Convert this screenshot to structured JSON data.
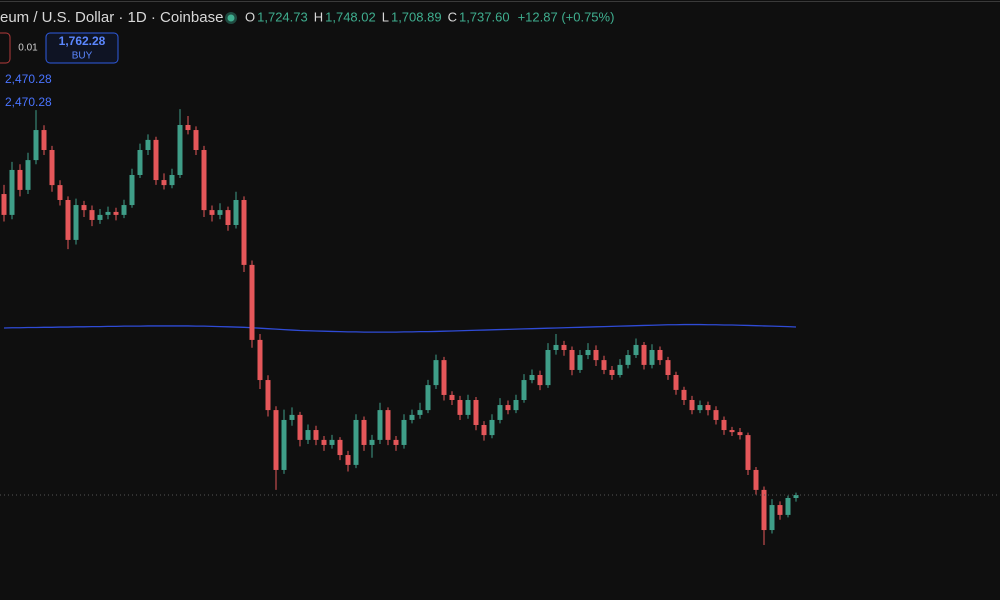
{
  "header": {
    "symbol": "eum / U.S. Dollar · 1D · Coinbase",
    "ohlc": [
      {
        "key": "O",
        "value": "1,724.73"
      },
      {
        "key": "H",
        "value": "1,748.02"
      },
      {
        "key": "L",
        "value": "1,708.89"
      },
      {
        "key": "C",
        "value": "1,737.60"
      }
    ],
    "change": "+12.87 (+0.75%)",
    "order": {
      "quantity": "0.01",
      "price": "1,762.28",
      "side": "BUY"
    },
    "indicator_labels": [
      "2,470.28",
      "2,470.28"
    ]
  },
  "chart_data": {
    "type": "candlestick",
    "up_color": "#3f9e88",
    "down_color": "#e5575a",
    "ylim": [
      1280,
      3896
    ],
    "candles": [
      [
        3050,
        3090,
        2930,
        2959
      ],
      [
        2959,
        3190,
        2940,
        3155
      ],
      [
        3155,
        3180,
        3040,
        3068
      ],
      [
        3068,
        3230,
        3050,
        3198
      ],
      [
        3198,
        3416,
        3180,
        3329
      ],
      [
        3329,
        3350,
        3220,
        3242
      ],
      [
        3242,
        3260,
        3060,
        3089
      ],
      [
        3089,
        3110,
        3000,
        3024
      ],
      [
        3024,
        3040,
        2810,
        2850
      ],
      [
        2850,
        3030,
        2830,
        3002
      ],
      [
        3002,
        3020,
        2950,
        2980
      ],
      [
        2980,
        3000,
        2910,
        2937
      ],
      [
        2937,
        2985,
        2920,
        2959
      ],
      [
        2959,
        2995,
        2940,
        2972
      ],
      [
        2972,
        2990,
        2935,
        2959
      ],
      [
        2959,
        3025,
        2945,
        3002
      ],
      [
        3002,
        3160,
        2990,
        3133
      ],
      [
        3133,
        3270,
        3120,
        3242
      ],
      [
        3242,
        3310,
        3220,
        3286
      ],
      [
        3286,
        3300,
        3090,
        3111
      ],
      [
        3111,
        3140,
        3070,
        3089
      ],
      [
        3089,
        3160,
        3075,
        3133
      ],
      [
        3133,
        3420,
        3120,
        3351
      ],
      [
        3351,
        3390,
        3310,
        3329
      ],
      [
        3329,
        3345,
        3220,
        3242
      ],
      [
        3242,
        3260,
        2950,
        2980
      ],
      [
        2980,
        3000,
        2930,
        2959
      ],
      [
        2959,
        3010,
        2940,
        2980
      ],
      [
        2980,
        2995,
        2890,
        2915
      ],
      [
        2915,
        3060,
        2900,
        3024
      ],
      [
        3024,
        3040,
        2710,
        2741
      ],
      [
        2741,
        2760,
        2380,
        2414
      ],
      [
        2414,
        2440,
        2200,
        2239
      ],
      [
        2239,
        2260,
        2080,
        2108
      ],
      [
        2108,
        2125,
        1760,
        1847
      ],
      [
        1847,
        2110,
        1830,
        2065
      ],
      [
        2065,
        2120,
        2040,
        2087
      ],
      [
        2087,
        2100,
        1950,
        1978
      ],
      [
        1978,
        2045,
        1960,
        2021
      ],
      [
        2021,
        2040,
        1955,
        1978
      ],
      [
        1978,
        1995,
        1930,
        1956
      ],
      [
        1956,
        2000,
        1940,
        1978
      ],
      [
        1978,
        1990,
        1890,
        1912
      ],
      [
        1912,
        1930,
        1840,
        1869
      ],
      [
        1869,
        2090,
        1855,
        2065
      ],
      [
        2065,
        2080,
        1930,
        1956
      ],
      [
        1956,
        2000,
        1900,
        1978
      ],
      [
        1978,
        2140,
        1960,
        2108
      ],
      [
        2108,
        2120,
        1955,
        1978
      ],
      [
        1978,
        1995,
        1930,
        1956
      ],
      [
        1956,
        2090,
        1940,
        2065
      ],
      [
        2065,
        2110,
        2050,
        2087
      ],
      [
        2087,
        2140,
        2070,
        2108
      ],
      [
        2108,
        2240,
        2095,
        2217
      ],
      [
        2217,
        2350,
        2200,
        2326
      ],
      [
        2326,
        2340,
        2150,
        2174
      ],
      [
        2174,
        2190,
        2130,
        2152
      ],
      [
        2152,
        2170,
        2065,
        2087
      ],
      [
        2087,
        2175,
        2070,
        2152
      ],
      [
        2152,
        2165,
        2020,
        2043
      ],
      [
        2043,
        2060,
        1975,
        1999
      ],
      [
        1999,
        2090,
        1985,
        2065
      ],
      [
        2065,
        2160,
        2050,
        2130
      ],
      [
        2130,
        2150,
        2090,
        2108
      ],
      [
        2108,
        2175,
        2095,
        2152
      ],
      [
        2152,
        2265,
        2140,
        2239
      ],
      [
        2239,
        2285,
        2225,
        2261
      ],
      [
        2261,
        2280,
        2195,
        2217
      ],
      [
        2217,
        2400,
        2205,
        2370
      ],
      [
        2370,
        2440,
        2350,
        2392
      ],
      [
        2392,
        2410,
        2345,
        2370
      ],
      [
        2370,
        2385,
        2260,
        2283
      ],
      [
        2283,
        2370,
        2270,
        2348
      ],
      [
        2348,
        2400,
        2330,
        2370
      ],
      [
        2370,
        2390,
        2300,
        2326
      ],
      [
        2326,
        2345,
        2265,
        2283
      ],
      [
        2283,
        2300,
        2240,
        2261
      ],
      [
        2261,
        2330,
        2250,
        2305
      ],
      [
        2305,
        2370,
        2290,
        2348
      ],
      [
        2348,
        2420,
        2335,
        2392
      ],
      [
        2392,
        2405,
        2285,
        2305
      ],
      [
        2305,
        2395,
        2290,
        2370
      ],
      [
        2370,
        2385,
        2305,
        2326
      ],
      [
        2326,
        2340,
        2240,
        2261
      ],
      [
        2261,
        2275,
        2175,
        2196
      ],
      [
        2196,
        2210,
        2130,
        2152
      ],
      [
        2152,
        2170,
        2090,
        2108
      ],
      [
        2108,
        2150,
        2095,
        2130
      ],
      [
        2130,
        2145,
        2085,
        2108
      ],
      [
        2108,
        2125,
        2045,
        2065
      ],
      [
        2065,
        2080,
        2000,
        2021
      ],
      [
        2021,
        2035,
        1995,
        2012
      ],
      [
        2012,
        2030,
        1980,
        1999
      ],
      [
        1999,
        2010,
        1825,
        1847
      ],
      [
        1847,
        1860,
        1740,
        1760
      ],
      [
        1760,
        1775,
        1520,
        1585
      ],
      [
        1585,
        1720,
        1570,
        1694
      ],
      [
        1694,
        1710,
        1630,
        1651
      ],
      [
        1651,
        1735,
        1640,
        1724.73
      ],
      [
        1724.73,
        1748.02,
        1708.89,
        1737.6
      ]
    ],
    "ma": {
      "color": "#2f4bd6",
      "values": [
        2466,
        2467,
        2467,
        2468,
        2468,
        2469,
        2469,
        2470,
        2470,
        2471,
        2471,
        2472,
        2472,
        2473,
        2473,
        2474,
        2474,
        2474,
        2475,
        2475,
        2475,
        2475,
        2475,
        2475,
        2474,
        2474,
        2473,
        2472,
        2471,
        2470,
        2469,
        2467,
        2465,
        2463,
        2461,
        2459,
        2457,
        2455,
        2454,
        2453,
        2452,
        2451,
        2450,
        2449,
        2449,
        2448,
        2448,
        2448,
        2448,
        2448,
        2449,
        2449,
        2450,
        2450,
        2451,
        2452,
        2453,
        2454,
        2455,
        2456,
        2457,
        2458,
        2459,
        2460,
        2461,
        2462,
        2463,
        2464,
        2465,
        2466,
        2467,
        2468,
        2469,
        2470,
        2471,
        2472,
        2473,
        2474,
        2475,
        2476,
        2477,
        2478,
        2479,
        2480,
        2480,
        2481,
        2481,
        2481,
        2480,
        2480,
        2479,
        2479,
        2478,
        2477,
        2476,
        2475,
        2474,
        2473,
        2472,
        2470.28
      ]
    }
  }
}
